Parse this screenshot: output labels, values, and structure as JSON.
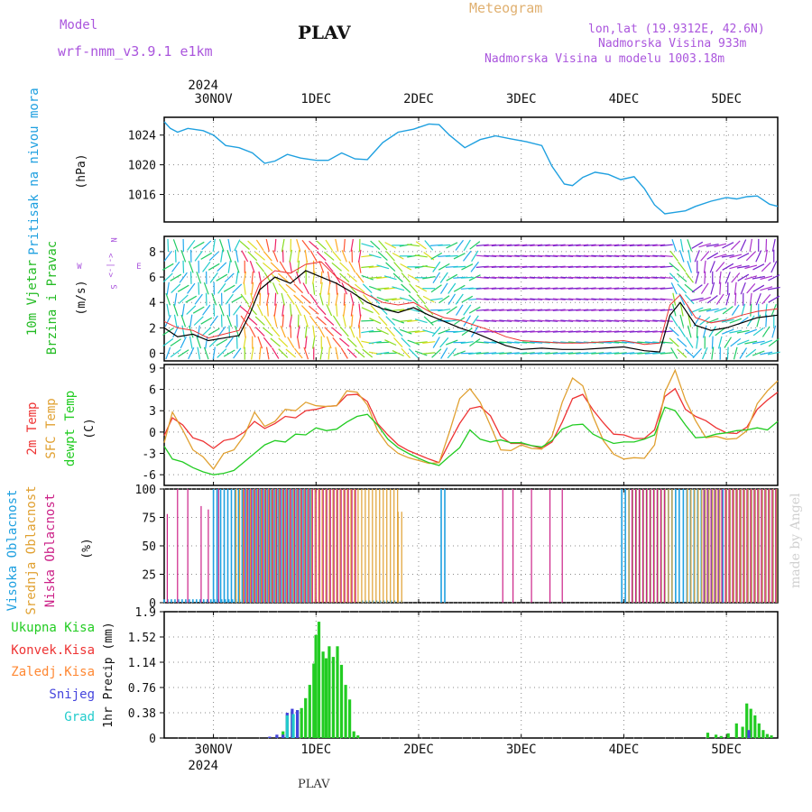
{
  "header": {
    "model_label": "Model",
    "model_name": "wrf-nmm_v3.9.1 e1km",
    "station": "PLAV",
    "meteogram": "Meteogram",
    "lonlat": "lon,lat (19.9312E, 42.6N)",
    "altitude": "Nadmorska Visina 933m",
    "model_altitude": "Nadmorska Visina u modelu 1003.18m",
    "footer_station": "PLAV",
    "watermark": "made by Angel"
  },
  "colors": {
    "pressure": "#1fa0e0",
    "wind_label": "#22bb22",
    "temp2m": "#ee3333",
    "sfc": "#e0a030",
    "dewpt": "#22cc22",
    "high_cloud": "#1fa0e0",
    "mid_cloud": "#e0a030",
    "low_cloud": "#cc2288",
    "total_precip": "#22cc22",
    "conv_precip": "#ee3333",
    "frz_precip": "#ff8833",
    "snow": "#4444dd",
    "graupel": "#22cccc",
    "purple_text": "#aa55dd",
    "header_orange": "#e0b070"
  },
  "chart_data": [
    {
      "type": "line",
      "panel": "pressure",
      "ylabel": [
        "Pritisak na nivou mora",
        "(hPa)"
      ],
      "yticks": [
        1016,
        1020,
        1024
      ],
      "ylim": [
        1012.3,
        1026.4
      ],
      "x_day_offset_start": -0.48,
      "x_day_offset_end": 5.5,
      "days": [
        "30NOV",
        "1DEC",
        "2DEC",
        "3DEC",
        "4DEC",
        "5DEC"
      ],
      "year": "2024",
      "grid": true,
      "x": [
        -0.48,
        -0.42,
        -0.35,
        -0.25,
        -0.1,
        0,
        0.12,
        0.25,
        0.38,
        0.5,
        0.6,
        0.72,
        0.85,
        1.0,
        1.12,
        1.25,
        1.38,
        1.5,
        1.65,
        1.8,
        1.95,
        2.1,
        2.2,
        2.3,
        2.45,
        2.6,
        2.75,
        2.9,
        3.05,
        3.2,
        3.3,
        3.42,
        3.5,
        3.6,
        3.72,
        3.85,
        3.97,
        4.1,
        4.2,
        4.3,
        4.4,
        4.5,
        4.6,
        4.7,
        4.85,
        5.0,
        5.1,
        5.2,
        5.3,
        5.42,
        5.5
      ],
      "values": [
        1025.8,
        1024.9,
        1024.4,
        1024.9,
        1024.6,
        1024.0,
        1022.6,
        1022.3,
        1021.6,
        1020.2,
        1020.5,
        1021.4,
        1020.9,
        1020.6,
        1020.6,
        1021.6,
        1020.8,
        1020.7,
        1023.0,
        1024.4,
        1024.8,
        1025.5,
        1025.4,
        1024.0,
        1022.3,
        1023.4,
        1023.9,
        1023.5,
        1023.1,
        1022.6,
        1019.8,
        1017.4,
        1017.2,
        1018.3,
        1019.0,
        1018.7,
        1018.0,
        1018.4,
        1016.8,
        1014.6,
        1013.4,
        1013.6,
        1013.8,
        1014.4,
        1015.1,
        1015.6,
        1015.4,
        1015.7,
        1015.8,
        1014.7,
        1014.4
      ]
    },
    {
      "type": "wind",
      "panel": "wind",
      "ylabel": [
        "10m Vjetar",
        "Brzina i Pravac",
        "(m/s)"
      ],
      "direction_legend": [
        "N",
        "<-|->",
        "E",
        "W",
        "S"
      ],
      "yticks": [
        0,
        2,
        4,
        6,
        8
      ],
      "ylim": [
        -0.6,
        9.2
      ],
      "x": [
        -0.48,
        -0.35,
        -0.2,
        -0.05,
        0.1,
        0.25,
        0.35,
        0.45,
        0.6,
        0.75,
        0.9,
        1.05,
        1.2,
        1.35,
        1.5,
        1.65,
        1.8,
        1.95,
        2.1,
        2.25,
        2.4,
        2.55,
        2.7,
        2.85,
        3.0,
        3.2,
        3.4,
        3.6,
        3.8,
        4.0,
        4.2,
        4.35,
        4.45,
        4.55,
        4.7,
        4.85,
        5.0,
        5.15,
        5.3,
        5.5
      ],
      "speed": [
        2.0,
        1.3,
        1.5,
        1.0,
        1.2,
        1.4,
        3.0,
        5.0,
        6.0,
        5.5,
        6.5,
        6.0,
        5.5,
        4.8,
        4.0,
        3.5,
        3.2,
        3.6,
        3.0,
        2.5,
        2.0,
        1.6,
        1.1,
        0.6,
        0.3,
        0.4,
        0.3,
        0.3,
        0.4,
        0.5,
        0.2,
        0.1,
        3.0,
        4.0,
        2.2,
        1.8,
        2.0,
        2.4,
        2.8,
        3.0
      ],
      "gust": [
        2.5,
        2.0,
        1.8,
        1.2,
        1.5,
        1.8,
        3.5,
        5.5,
        6.5,
        6.3,
        7.0,
        7.2,
        6.0,
        5.2,
        4.6,
        4.0,
        3.8,
        4.0,
        3.3,
        2.8,
        2.6,
        2.2,
        1.8,
        1.3,
        1.0,
        0.9,
        0.8,
        0.8,
        0.9,
        1.0,
        0.7,
        0.8,
        3.8,
        4.6,
        2.8,
        2.4,
        2.6,
        3.0,
        3.3,
        3.5
      ]
    },
    {
      "type": "line",
      "panel": "temperature",
      "ylabel": [
        "2m Temp",
        "SFC Temp",
        "dewpt Temp",
        "(C)"
      ],
      "yticks": [
        -6,
        -3,
        0,
        3,
        6,
        9
      ],
      "ylim": [
        -7.5,
        9.5
      ],
      "x": [
        -0.48,
        -0.4,
        -0.3,
        -0.2,
        -0.1,
        0,
        0.1,
        0.2,
        0.3,
        0.4,
        0.5,
        0.6,
        0.7,
        0.8,
        0.9,
        1.0,
        1.1,
        1.2,
        1.3,
        1.4,
        1.5,
        1.6,
        1.7,
        1.8,
        1.9,
        2.0,
        2.1,
        2.2,
        2.3,
        2.4,
        2.5,
        2.6,
        2.7,
        2.8,
        2.9,
        3.0,
        3.1,
        3.2,
        3.3,
        3.4,
        3.5,
        3.6,
        3.7,
        3.8,
        3.9,
        4.0,
        4.1,
        4.2,
        4.3,
        4.4,
        4.5,
        4.6,
        4.7,
        4.8,
        4.9,
        5.0,
        5.1,
        5.2,
        5.3,
        5.4,
        5.5
      ],
      "series": [
        {
          "name": "2m Temp",
          "values": [
            -0.5,
            2.0,
            1.0,
            -0.8,
            -1.3,
            -2.3,
            -1.2,
            -0.9,
            0.0,
            1.5,
            0.5,
            1.2,
            2.2,
            2.0,
            3.0,
            3.2,
            3.6,
            3.7,
            5.2,
            5.3,
            4.3,
            1.2,
            -0.4,
            -1.8,
            -2.6,
            -3.2,
            -3.8,
            -4.3,
            -1.5,
            1.2,
            3.3,
            3.6,
            2.3,
            -0.6,
            -1.6,
            -1.6,
            -1.9,
            -2.3,
            -1.4,
            1.4,
            4.7,
            5.3,
            3.1,
            1.3,
            -0.3,
            -0.4,
            -0.9,
            -0.9,
            0.3,
            5.0,
            6.1,
            3.2,
            2.2,
            1.6,
            0.6,
            -0.1,
            -0.2,
            0.7,
            3.2,
            4.5,
            5.6
          ]
        },
        {
          "name": "SFC Temp",
          "values": [
            -1.5,
            2.8,
            0.3,
            -2.5,
            -3.5,
            -5.2,
            -3.0,
            -2.5,
            -0.5,
            2.8,
            0.8,
            1.5,
            3.2,
            3.0,
            4.2,
            3.7,
            3.6,
            3.7,
            5.8,
            5.6,
            3.8,
            0.2,
            -1.8,
            -3.0,
            -3.6,
            -4.0,
            -4.4,
            -4.3,
            0.0,
            4.7,
            6.1,
            4.2,
            0.9,
            -2.5,
            -2.6,
            -1.8,
            -2.3,
            -2.4,
            -0.6,
            4.2,
            7.6,
            6.5,
            2.2,
            -1.2,
            -3.1,
            -3.8,
            -3.6,
            -3.7,
            -1.8,
            5.6,
            8.7,
            4.5,
            1.6,
            -0.8,
            -0.6,
            -1.0,
            -0.9,
            0.2,
            4.0,
            5.8,
            7.2
          ]
        },
        {
          "name": "dewpt Temp",
          "values": [
            -2.0,
            -3.8,
            -4.2,
            -5.0,
            -5.6,
            -6.0,
            -5.8,
            -5.4,
            -4.2,
            -3.0,
            -1.8,
            -1.2,
            -1.4,
            -0.3,
            -0.4,
            0.6,
            0.2,
            0.4,
            1.4,
            2.2,
            2.5,
            1.0,
            -1.0,
            -2.2,
            -3.0,
            -3.7,
            -4.3,
            -4.7,
            -3.4,
            -2.2,
            0.3,
            -1.0,
            -1.4,
            -1.1,
            -1.5,
            -1.5,
            -1.9,
            -2.1,
            -1.2,
            0.4,
            1.0,
            1.1,
            -0.3,
            -1.0,
            -1.6,
            -1.4,
            -1.4,
            -1.0,
            -0.4,
            3.5,
            3.0,
            1.0,
            -0.8,
            -0.7,
            -0.3,
            -0.1,
            0.2,
            0.3,
            0.6,
            0.3,
            1.5
          ]
        }
      ]
    },
    {
      "type": "bar",
      "panel": "cloud",
      "ylabel": [
        "Visoka Oblacnost",
        "Srednja Oblacnost",
        "Niska Oblacnost",
        "(%)"
      ],
      "yticks": [
        0,
        25,
        50,
        75,
        100
      ],
      "ylim": [
        0,
        100
      ],
      "series": [
        {
          "name": "Visoka Oblacnost",
          "segments": [
            [
              -0.48,
              0.65,
              3
            ],
            [
              0.0,
              0.95,
              100
            ],
            [
              1.1,
              1.35,
              100
            ],
            [
              1.45,
              1.85,
              2
            ],
            [
              1.87,
              3.98,
              0
            ],
            [
              2.22,
              2.27,
              100
            ],
            [
              3.98,
              4.55,
              100
            ],
            [
              4.58,
              5.5,
              100
            ]
          ]
        },
        {
          "name": "Srednja Oblacnost",
          "segments": [
            [
              0.22,
              1.8,
              100
            ],
            [
              1.8,
              1.86,
              80
            ],
            [
              4.05,
              4.5,
              100
            ],
            [
              4.62,
              4.95,
              100
            ],
            [
              5.0,
              5.5,
              100
            ]
          ]
        },
        {
          "name": "Niska Oblacnost",
          "segments": [
            [
              -0.45,
              -0.45,
              78
            ],
            [
              -0.35,
              -0.35,
              100
            ],
            [
              -0.25,
              -0.25,
              100
            ],
            [
              -0.12,
              -0.12,
              85
            ],
            [
              -0.05,
              -0.05,
              82
            ],
            [
              0.05,
              0.05,
              100
            ],
            [
              0.3,
              1.4,
              100
            ],
            [
              2.82,
              2.82,
              100
            ],
            [
              2.92,
              2.92,
              100
            ],
            [
              3.1,
              3.1,
              100
            ],
            [
              3.28,
              3.28,
              100
            ],
            [
              3.4,
              3.4,
              100
            ],
            [
              4.08,
              4.4,
              100
            ],
            [
              4.78,
              5.5,
              100
            ]
          ]
        }
      ]
    },
    {
      "type": "bar",
      "panel": "precipitation",
      "ylabel": [
        "1hr Precip (mm)"
      ],
      "legend": [
        "Ukupna Kisa",
        "Konvek.Kisa",
        "Zaledj.Kisa",
        "Snijeg",
        "Grad"
      ],
      "yticks": [
        0,
        0.38,
        0.76,
        1.14,
        1.52,
        1.9
      ],
      "ytick_labels": [
        "0",
        "0.38",
        "0.76",
        "1.14",
        "1.52",
        "1.9"
      ],
      "ylim": [
        0,
        1.9
      ],
      "series": [
        {
          "name": "Ukupna Kisa",
          "x": [
            0.55,
            0.62,
            0.68,
            0.72,
            0.77,
            0.82,
            0.86,
            0.9,
            0.94,
            0.98,
            1.0,
            1.03,
            1.07,
            1.1,
            1.13,
            1.17,
            1.21,
            1.25,
            1.29,
            1.33,
            1.37,
            1.41,
            4.82,
            4.9,
            4.95,
            5.02,
            5.1,
            5.16,
            5.2,
            5.24,
            5.28,
            5.32,
            5.36,
            5.4,
            5.44
          ],
          "values": [
            0.01,
            0.03,
            0.1,
            0.35,
            0.4,
            0.42,
            0.45,
            0.6,
            0.8,
            1.12,
            1.55,
            1.75,
            1.3,
            1.2,
            1.38,
            1.22,
            1.38,
            1.1,
            0.8,
            0.58,
            0.1,
            0.04,
            0.08,
            0.05,
            0.03,
            0.07,
            0.22,
            0.17,
            0.52,
            0.44,
            0.34,
            0.22,
            0.12,
            0.06,
            0.04
          ]
        },
        {
          "name": "Konvek.Kisa",
          "x": [
            0.72,
            0.77,
            0.82
          ],
          "values": [
            0.02,
            0.03,
            0.02
          ]
        },
        {
          "name": "Snijeg",
          "x": [
            0.55,
            0.62,
            0.68,
            0.72,
            0.77,
            0.82,
            5.22
          ],
          "values": [
            0.02,
            0.05,
            0.05,
            0.38,
            0.44,
            0.42,
            0.12
          ]
        },
        {
          "name": "Grad",
          "x": [
            0.72,
            0.78
          ],
          "values": [
            0.34,
            0.36
          ]
        }
      ]
    }
  ]
}
